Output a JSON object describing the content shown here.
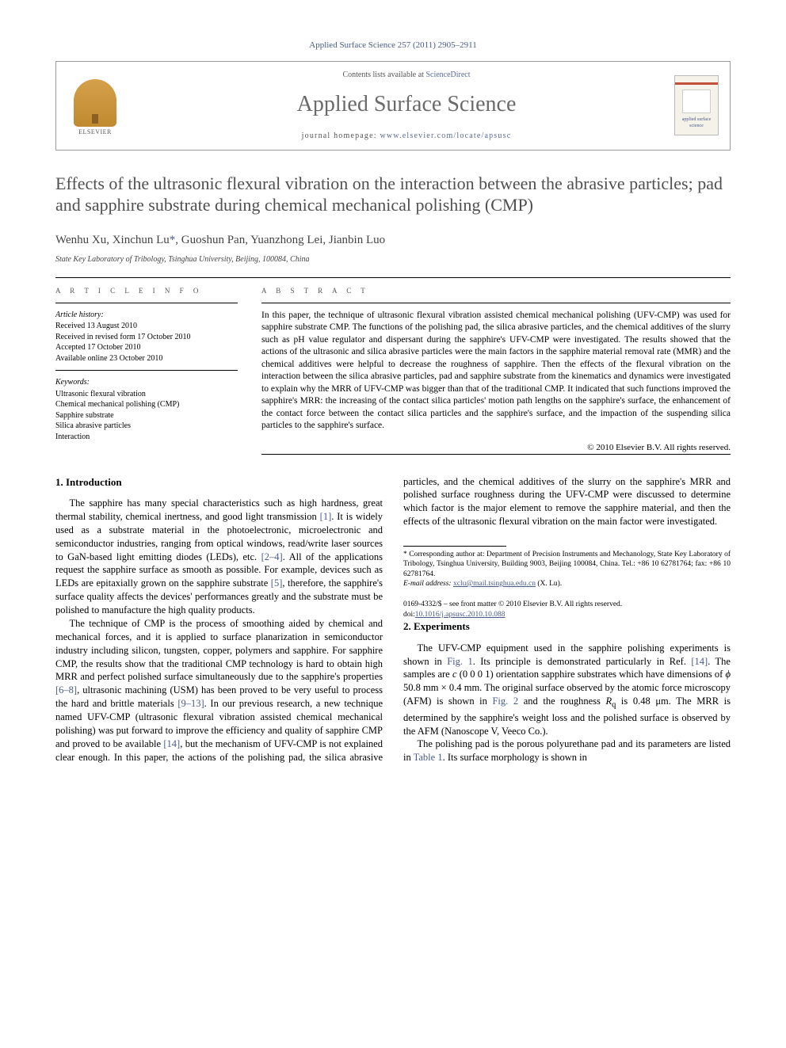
{
  "journal_ref": "Applied Surface Science 257 (2011) 2905–2911",
  "header": {
    "publisher": "ELSEVIER",
    "contents_prefix": "Contents lists available at ",
    "contents_link": "ScienceDirect",
    "journal_title": "Applied Surface Science",
    "homepage_prefix": "journal homepage: ",
    "homepage_url": "www.elsevier.com/locate/apsusc",
    "cover_label": "applied surface science"
  },
  "title": "Effects of the ultrasonic flexural vibration on the interaction between the abrasive particles; pad and sapphire substrate during chemical mechanical polishing (CMP)",
  "authors_html": "Wenhu Xu, Xinchun Lu *, Guoshun Pan, Yuanzhong Lei, Jianbin Luo",
  "authors": {
    "a1": "Wenhu Xu, ",
    "a2": "Xinchun Lu",
    "star": "*",
    "rest": ", Guoshun Pan, Yuanzhong Lei, Jianbin Luo"
  },
  "affiliation": "State Key Laboratory of Tribology, Tsinghua University, Beijing, 100084, China",
  "labels": {
    "article_info": "a r t i c l e   i n f o",
    "abstract": "a b s t r a c t",
    "history": "Article history:",
    "keywords": "Keywords:"
  },
  "history": {
    "received": "Received 13 August 2010",
    "revised": "Received in revised form 17 October 2010",
    "accepted": "Accepted 17 October 2010",
    "online": "Available online 23 October 2010"
  },
  "keywords": [
    "Ultrasonic flexural vibration",
    "Chemical mechanical polishing (CMP)",
    "Sapphire substrate",
    "Silica abrasive particles",
    "Interaction"
  ],
  "abstract": "In this paper, the technique of ultrasonic flexural vibration assisted chemical mechanical polishing (UFV-CMP) was used for sapphire substrate CMP. The functions of the polishing pad, the silica abrasive particles, and the chemical additives of the slurry such as pH value regulator and dispersant during the sapphire's UFV-CMP were investigated. The results showed that the actions of the ultrasonic and silica abrasive particles were the main factors in the sapphire material removal rate (MMR) and the chemical additives were helpful to decrease the roughness of sapphire. Then the effects of the flexural vibration on the interaction between the silica abrasive particles, pad and sapphire substrate from the kinematics and dynamics were investigated to explain why the MRR of UFV-CMP was bigger than that of the traditional CMP. It indicated that such functions improved the sapphire's MRR: the increasing of the contact silica particles' motion path lengths on the sapphire's surface, the enhancement of the contact force between the contact silica particles and the sapphire's surface, and the impaction of the suspending silica particles to the sapphire's surface.",
  "copyright": "© 2010 Elsevier B.V. All rights reserved.",
  "sections": {
    "s1_head": "1.  Introduction",
    "s1_p1a": "The sapphire has many special characteristics such as high hardness, great thermal stability, chemical inertness, and good light transmission ",
    "s1_c1": "[1]",
    "s1_p1b": ". It is widely used as a substrate material in the photoelectronic, microelectronic and semiconductor industries, ranging from optical windows, read/write laser sources to GaN-based light emitting diodes (LEDs), etc. ",
    "s1_c2": "[2–4]",
    "s1_p1c": ". All of the applications request the sapphire surface as smooth as possible. For example, devices such as LEDs are epitaxially grown on the sapphire substrate ",
    "s1_c3": "[5]",
    "s1_p1d": ", therefore, the sapphire's surface quality affects the devices' performances greatly and the substrate must be polished to manufacture the high quality products.",
    "s1_p2a": "The technique of CMP is the process of smoothing aided by chemical and mechanical forces, and it is applied to surface planarization in semiconductor industry including silicon, tungsten, copper, polymers and sapphire. For sapphire CMP, the results show that the traditional CMP technology is hard to obtain high MRR and perfect polished surface simultaneously due to the sapphire's properties ",
    "s1_c4": "[6–8]",
    "s1_p2b": ", ultrasonic machining (USM) has been proved to be very useful to process the hard and brittle materials ",
    "s1_c5": "[9–13]",
    "s1_p2c": ". In our previous research, a new technique named UFV-CMP (ultrasonic flexural vibration assisted chemical mechanical polishing) was put forward to improve the efficiency and quality of sapphire CMP and proved to be available ",
    "s1_c6": "[14]",
    "s1_p2d": ", but the mechanism of UFV-CMP is not explained clear enough. In this paper, the actions of the polishing pad, the silica abrasive particles, and the chemical additives of the slurry on the sapphire's MRR and polished surface roughness during the UFV-CMP were discussed to determine which factor is the major element to remove the sapphire material, and then the effects of the ultrasonic flexural vibration on the main factor were investigated.",
    "s2_head": "2.  Experiments",
    "s2_p1a": "The UFV-CMP equipment used in the sapphire polishing experiments is shown in ",
    "s2_cfig1": "Fig. 1",
    "s2_p1b": ". Its principle is demonstrated particularly in Ref. ",
    "s2_c14": "[14]",
    "s2_p1c": ". The samples are ",
    "s2_ic": "c",
    "s2_p1c2": " (0 0 0 1) orientation sapphire substrates which have dimensions of ",
    "s2_phi": "ϕ",
    "s2_p1d": " 50.8 mm × 0.4 mm. The original surface observed by the atomic force microscopy (AFM) is shown in ",
    "s2_cfig2": "Fig. 2",
    "s2_p1e": " and the roughness ",
    "s2_rq": "R",
    "s2_rqs": "q",
    "s2_p1f": " is 0.48 μm. The MRR is determined by the sapphire's weight loss and the polished surface is observed by the AFM (Nanoscope V, Veeco Co.).",
    "s2_p2a": "The polishing pad is the porous polyurethane pad and its parameters are listed in ",
    "s2_ctab1": "Table 1",
    "s2_p2b": ". Its surface morphology is shown in"
  },
  "footnote": {
    "corr_label": "* Corresponding author at: ",
    "corr_text": "Department of Precision Instruments and Mechanology, State Key Laboratory of Tribology, Tsinghua University, Building 9003, Beijing 100084, China. Tel.: +86 10 62781764; fax: +86 10 62781764.",
    "email_label": "E-mail address: ",
    "email": "xclu@mail.tsinghua.edu.cn",
    "email_who": " (X. Lu)."
  },
  "footer": {
    "line1": "0169-4332/$ – see front matter © 2010 Elsevier B.V. All rights reserved.",
    "doi_label": "doi:",
    "doi": "10.1016/j.apsusc.2010.10.088"
  },
  "colors": {
    "link": "#4a5a8a",
    "title_gray": "#505050",
    "header_gray": "#6a6a6a"
  }
}
